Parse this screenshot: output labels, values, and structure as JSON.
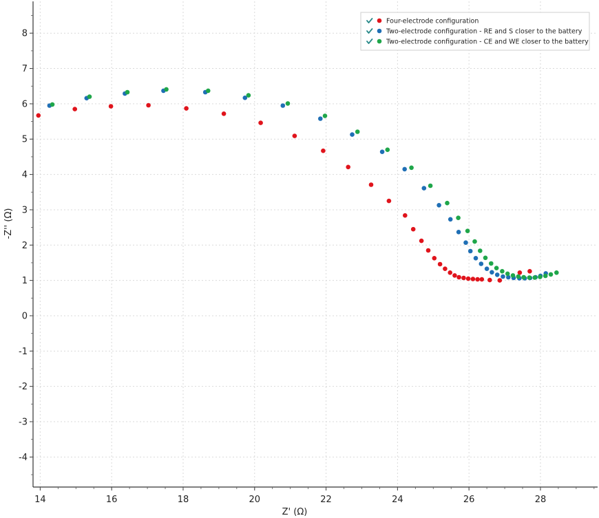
{
  "chart_data": {
    "type": "scatter",
    "xlabel": "Z' (Ω)",
    "ylabel": "-Z'' (Ω)",
    "xlim": [
      13.8,
      29.6
    ],
    "ylim": [
      -4.85,
      8.9
    ],
    "xticks": [
      14,
      16,
      18,
      20,
      22,
      24,
      26,
      28
    ],
    "yticks": [
      -4,
      -3,
      -2,
      -1,
      0,
      1,
      2,
      3,
      4,
      5,
      6,
      7,
      8
    ],
    "grid": true,
    "legend_position": "top-right",
    "legend_check_color": "#2a8a8a",
    "series": [
      {
        "name": "Four-electrode configuration",
        "color": "#e0141c",
        "x": [
          13.95,
          14.97,
          15.98,
          17.03,
          18.09,
          19.14,
          20.17,
          21.12,
          21.92,
          22.62,
          23.26,
          23.76,
          24.21,
          24.44,
          24.67,
          24.86,
          25.03,
          25.19,
          25.33,
          25.47,
          25.6,
          25.72,
          25.85,
          25.98,
          26.11,
          26.24,
          26.36,
          26.58,
          26.86,
          27.42,
          27.7
        ],
        "y": [
          5.67,
          5.85,
          5.93,
          5.96,
          5.87,
          5.72,
          5.46,
          5.09,
          4.67,
          4.21,
          3.71,
          3.25,
          2.84,
          2.45,
          2.12,
          1.85,
          1.63,
          1.46,
          1.33,
          1.22,
          1.14,
          1.09,
          1.07,
          1.05,
          1.04,
          1.03,
          1.03,
          1.01,
          1.0,
          1.22,
          1.26
        ]
      },
      {
        "name": "Two-electrode configuration - RE and S closer to the battery",
        "color": "#1f6fb5",
        "x": [
          14.26,
          15.3,
          16.37,
          17.45,
          18.62,
          19.73,
          20.79,
          21.84,
          22.73,
          23.57,
          24.2,
          24.74,
          25.16,
          25.48,
          25.71,
          25.91,
          26.04,
          26.19,
          26.34,
          26.5,
          26.64,
          26.79,
          26.95,
          27.1,
          27.25,
          27.41,
          27.56,
          27.71,
          27.86,
          28.0,
          28.15
        ],
        "y": [
          5.95,
          6.16,
          6.29,
          6.37,
          6.33,
          6.17,
          5.95,
          5.58,
          5.13,
          4.64,
          4.15,
          3.61,
          3.13,
          2.73,
          2.37,
          2.07,
          1.83,
          1.63,
          1.47,
          1.33,
          1.23,
          1.16,
          1.11,
          1.09,
          1.07,
          1.06,
          1.06,
          1.07,
          1.09,
          1.13,
          1.2
        ]
      },
      {
        "name": "Two-electrode configuration - CE and WE closer to the battery",
        "color": "#1fa64a",
        "x": [
          14.34,
          15.38,
          16.44,
          17.53,
          18.7,
          19.83,
          20.93,
          21.97,
          22.88,
          23.72,
          24.39,
          24.92,
          25.39,
          25.7,
          25.96,
          26.16,
          26.31,
          26.46,
          26.62,
          26.77,
          26.93,
          27.08,
          27.23,
          27.38,
          27.53,
          27.69,
          27.84,
          27.99,
          28.14,
          28.29,
          28.45
        ],
        "y": [
          5.98,
          6.2,
          6.33,
          6.41,
          6.37,
          6.24,
          6.01,
          5.66,
          5.21,
          4.7,
          4.19,
          3.68,
          3.19,
          2.77,
          2.4,
          2.1,
          1.84,
          1.64,
          1.48,
          1.35,
          1.26,
          1.19,
          1.14,
          1.11,
          1.09,
          1.08,
          1.08,
          1.1,
          1.13,
          1.17,
          1.22
        ]
      }
    ]
  }
}
